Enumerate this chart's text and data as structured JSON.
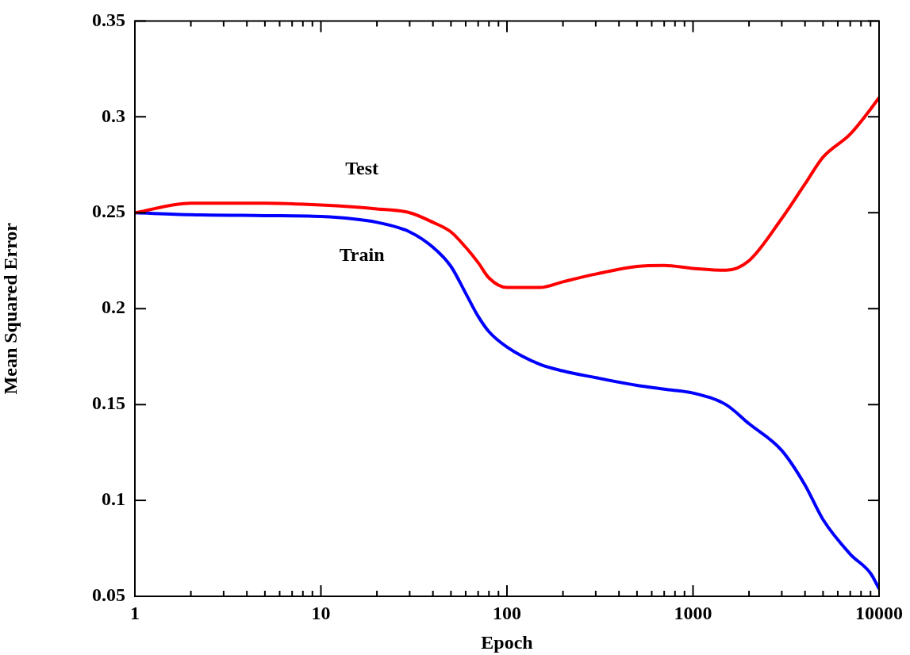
{
  "chart_data": {
    "type": "line",
    "xlabel": "Epoch",
    "ylabel": "Mean Squared Error",
    "log": "x",
    "grid": false,
    "legend": false,
    "marker": "none",
    "line_style": "solid",
    "x": [
      1,
      2,
      5,
      10,
      20,
      30,
      40,
      50,
      60,
      70,
      80,
      100,
      150,
      200,
      300,
      500,
      700,
      1000,
      1500,
      2000,
      3000,
      4000,
      5000,
      7000,
      9000,
      10000
    ],
    "series": [
      {
        "name": "Test",
        "color": "#ff0000",
        "values": [
          0.25,
          0.255,
          0.255,
          0.254,
          0.252,
          0.25,
          0.245,
          0.24,
          0.232,
          0.224,
          0.216,
          0.211,
          0.211,
          0.214,
          0.218,
          0.222,
          0.2225,
          0.221,
          0.22,
          0.225,
          0.247,
          0.265,
          0.279,
          0.291,
          0.304,
          0.31
        ]
      },
      {
        "name": "Train",
        "color": "#0000ff",
        "values": [
          0.25,
          0.249,
          0.2485,
          0.248,
          0.245,
          0.24,
          0.232,
          0.222,
          0.208,
          0.196,
          0.188,
          0.18,
          0.171,
          0.1675,
          0.164,
          0.16,
          0.158,
          0.156,
          0.15,
          0.14,
          0.126,
          0.108,
          0.09,
          0.072,
          0.062,
          0.054
        ]
      }
    ],
    "xlim": [
      1,
      10000
    ],
    "xticks": [
      1,
      {
        "value": 2,
        "label": null
      },
      {
        "value": 3,
        "label": null
      },
      {
        "value": 4,
        "label": null
      },
      {
        "value": 5,
        "label": null
      },
      {
        "value": 6,
        "label": null
      },
      {
        "value": 7,
        "label": null
      },
      {
        "value": 8,
        "label": null
      },
      {
        "value": 9,
        "label": null
      },
      10,
      {
        "value": 20,
        "label": null
      },
      {
        "value": 30,
        "label": null
      },
      {
        "value": 40,
        "label": null
      },
      {
        "value": 50,
        "label": null
      },
      {
        "value": 60,
        "label": null
      },
      {
        "value": 70,
        "label": null
      },
      {
        "value": 80,
        "label": null
      },
      {
        "value": 90,
        "label": null
      },
      100,
      {
        "value": 200,
        "label": null
      },
      {
        "value": 300,
        "label": null
      },
      {
        "value": 400,
        "label": null
      },
      {
        "value": 500,
        "label": null
      },
      {
        "value": 600,
        "label": null
      },
      {
        "value": 700,
        "label": null
      },
      {
        "value": 800,
        "label": null
      },
      {
        "value": 900,
        "label": null
      },
      1000,
      {
        "value": 2000,
        "label": null
      },
      {
        "value": 3000,
        "label": null
      },
      {
        "value": 4000,
        "label": null
      },
      {
        "value": 5000,
        "label": null
      },
      {
        "value": 6000,
        "label": null
      },
      {
        "value": 7000,
        "label": null
      },
      {
        "value": 8000,
        "label": null
      },
      {
        "value": 9000,
        "label": null
      },
      10000
    ],
    "ylim": [
      0.05,
      0.35
    ],
    "yticks": [
      0.05,
      0.1,
      0.15,
      0.2,
      0.25,
      0.3,
      0.35
    ]
  }
}
